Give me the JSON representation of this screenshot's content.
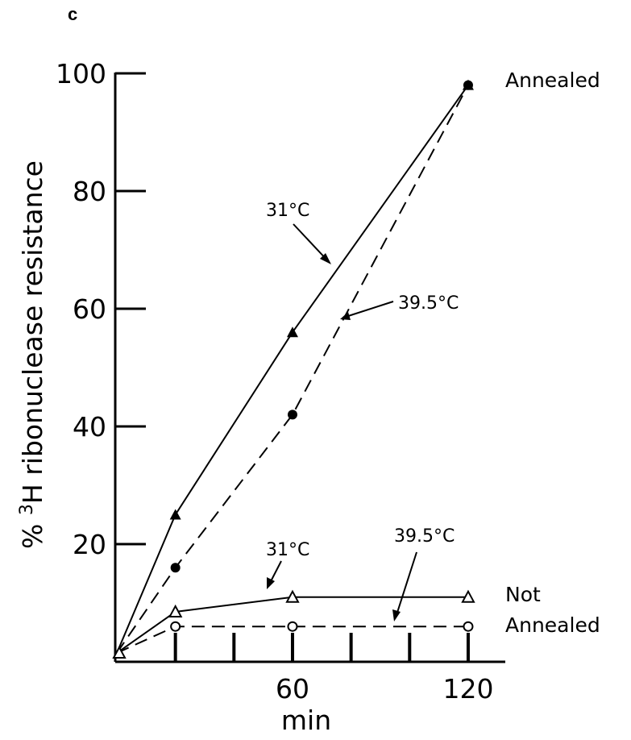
{
  "panel_label": "c",
  "chart_data": {
    "type": "line",
    "xlabel": "min",
    "ylabel_prefix": "% ",
    "ylabel_sup": "3",
    "ylabel_rest": "H ribonuclease resistance",
    "xlim": [
      0,
      130
    ],
    "ylim": [
      0,
      100
    ],
    "x_ticks_minor": [
      20,
      40,
      60,
      80,
      100,
      120
    ],
    "x_tick_labels": [
      {
        "x": 60,
        "label": "60"
      },
      {
        "x": 120,
        "label": "120"
      }
    ],
    "y_ticks": [
      {
        "y": 20,
        "label": "20"
      },
      {
        "y": 40,
        "label": "40"
      },
      {
        "y": 60,
        "label": "60"
      },
      {
        "y": 80,
        "label": "80"
      },
      {
        "y": 100,
        "label": "100"
      }
    ],
    "series": [
      {
        "id": "annealed-31",
        "style": "solid",
        "marker": "triangle-filled",
        "x": [
          0,
          20,
          60,
          120
        ],
        "y": [
          1.5,
          25,
          56,
          98
        ]
      },
      {
        "id": "annealed-39.5",
        "style": "dashed",
        "marker": "circle-filled",
        "x": [
          0,
          20,
          60,
          120
        ],
        "y": [
          1.5,
          16,
          42,
          98
        ]
      },
      {
        "id": "not-annealed-31",
        "style": "solid",
        "marker": "triangle-open",
        "x": [
          0,
          20,
          60,
          120
        ],
        "y": [
          1.5,
          8.5,
          11,
          11
        ]
      },
      {
        "id": "not-annealed-39.5",
        "style": "dashed",
        "marker": "circle-open",
        "x": [
          0,
          20,
          60,
          120
        ],
        "y": [
          1.5,
          6,
          6,
          6
        ]
      }
    ],
    "annotations": {
      "annealed_label": "Annealed",
      "not_annealed_label_1": "Not",
      "not_annealed_label_2": "Annealed",
      "temp_31_upper": "31°C",
      "temp_395_upper": "39.5°C",
      "temp_31_lower": "31°C",
      "temp_395_lower": "39.5°C"
    }
  }
}
